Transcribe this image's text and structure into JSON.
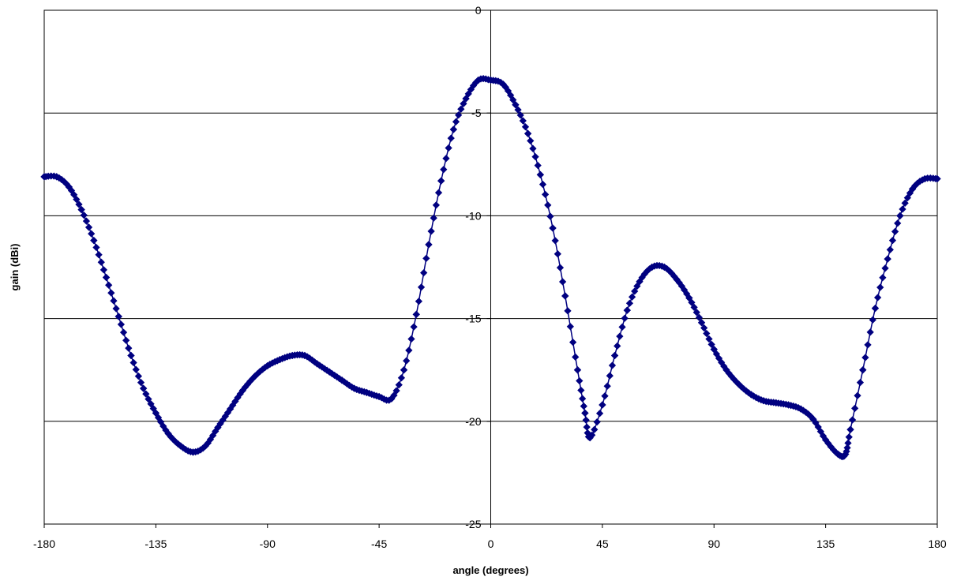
{
  "chart_data": {
    "type": "line",
    "title": "",
    "xlabel": "angle (degrees)",
    "ylabel": "gain (dBi)",
    "xlim": [
      -180,
      180
    ],
    "ylim": [
      -25,
      0
    ],
    "x_ticks": [
      -180,
      -135,
      -90,
      -45,
      0,
      45,
      90,
      135,
      180
    ],
    "y_ticks": [
      0,
      -5,
      -10,
      -15,
      -20,
      -25
    ],
    "x_tick_labels": [
      "-180",
      "-135",
      "-90",
      "-45",
      "0",
      "45",
      "90",
      "135",
      "180"
    ],
    "y_tick_labels": [
      "0",
      "-5",
      "-10",
      "-15",
      "-20",
      "-25"
    ],
    "grid": "horizontal major gridlines",
    "legend": "none",
    "marker": "diamond",
    "colors": {
      "series": "#000080",
      "axes": "#000000",
      "grid": "#000000",
      "background": "#ffffff"
    },
    "series": [
      {
        "x": [
          -180,
          -175,
          -170,
          -165,
          -160,
          -155,
          -150,
          -145,
          -140,
          -135,
          -130,
          -125,
          -120,
          -115,
          -110,
          -105,
          -100,
          -95,
          -90,
          -85,
          -80,
          -75,
          -70,
          -65,
          -60,
          -55,
          -50,
          -45,
          -40,
          -35,
          -30,
          -25,
          -20,
          -15,
          -10,
          -5,
          0,
          5,
          10,
          15,
          20,
          25,
          30,
          35,
          38,
          40,
          45,
          50,
          55,
          60,
          65,
          70,
          75,
          80,
          85,
          90,
          95,
          100,
          105,
          110,
          115,
          120,
          125,
          130,
          135,
          140,
          143,
          145,
          150,
          155,
          160,
          165,
          170,
          175,
          180
        ],
        "y": [
          -8.1,
          -8.1,
          -8.6,
          -9.7,
          -11.2,
          -13.0,
          -14.9,
          -16.8,
          -18.4,
          -19.6,
          -20.6,
          -21.2,
          -21.5,
          -21.2,
          -20.3,
          -19.4,
          -18.5,
          -17.8,
          -17.3,
          -17.0,
          -16.8,
          -16.8,
          -17.2,
          -17.6,
          -18.0,
          -18.4,
          -18.6,
          -18.8,
          -18.9,
          -17.5,
          -14.8,
          -11.4,
          -8.3,
          -5.8,
          -4.3,
          -3.4,
          -3.4,
          -3.6,
          -4.6,
          -6.0,
          -8.0,
          -10.6,
          -13.9,
          -17.5,
          -19.6,
          -20.8,
          -19.2,
          -16.8,
          -14.6,
          -13.2,
          -12.5,
          -12.5,
          -13.1,
          -14.0,
          -15.2,
          -16.5,
          -17.5,
          -18.2,
          -18.7,
          -19.0,
          -19.1,
          -19.2,
          -19.4,
          -19.9,
          -20.9,
          -21.6,
          -21.6,
          -20.4,
          -17.5,
          -14.5,
          -12.1,
          -10.0,
          -8.7,
          -8.2,
          -8.2
        ]
      }
    ]
  }
}
